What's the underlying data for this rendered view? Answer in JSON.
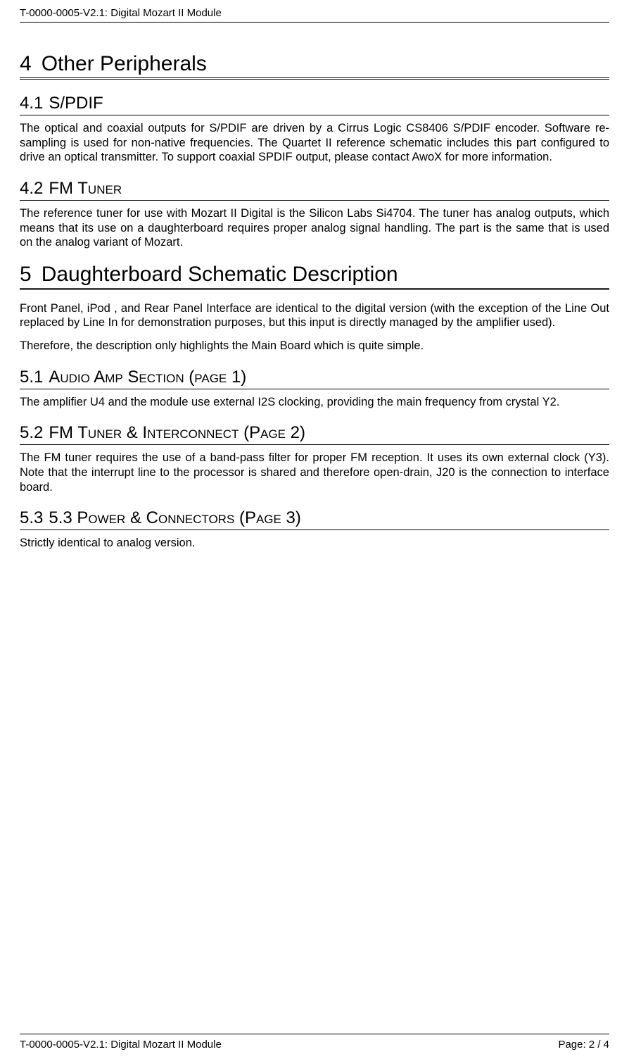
{
  "header": {
    "doc_id": "T-0000-0005-V2.1: Digital Mozart II  Module"
  },
  "footer": {
    "doc_id": "T-0000-0005-V2.1: Digital Mozart II  Module",
    "page": "Page: 2 / 4"
  },
  "sections": {
    "s4": {
      "num": "4",
      "title": "Other Peripherals"
    },
    "s4_1": {
      "num": "4.1",
      "title": "S/PDIF",
      "body": "The optical and coaxial outputs for S/PDIF are driven by a Cirrus Logic CS8406 S/PDIF encoder. Software re-sampling is used for non-native frequencies. The Quartet II reference schematic includes this part configured to drive an optical transmitter. To support coaxial SPDIF output, please contact AwoX for more information."
    },
    "s4_2": {
      "num": "4.2",
      "title": "FM Tuner",
      "body": "The reference tuner for use with Mozart II Digital is the Silicon Labs Si4704. The tuner has analog outputs, which means that its use on a daughterboard requires proper analog signal handling. The part is the same that is used on the analog variant of Mozart."
    },
    "s5": {
      "num": "5",
      "title": "Daughterboard Schematic Description",
      "body1": "Front Panel, iPod , and Rear Panel Interface are identical to the digital version (with the exception of the Line Out  replaced by Line In for demonstration purposes, but this input is directly managed by the amplifier used).",
      "body2": "Therefore, the description only highlights the Main Board which is quite simple."
    },
    "s5_1": {
      "num": "5.1",
      "title": "Audio Amp Section (page 1)",
      "body": "The amplifier U4 and the module use external I2S clocking, providing the main frequency from crystal Y2."
    },
    "s5_2": {
      "num": "5.2",
      "title": "FM Tuner & Interconnect (Page 2)",
      "body": "The FM tuner requires the use of a band-pass filter for proper FM reception. It uses its own external clock (Y3). Note that the interrupt line to the processor is shared and therefore open-drain, J20 is the connection to interface board."
    },
    "s5_3": {
      "num": "5.3",
      "title": "5.3 Power & Connectors (Page 3)",
      "body": "Strictly identical to analog version."
    }
  },
  "styles": {
    "text_color": "#000000",
    "background_color": "#ffffff",
    "body_fontsize": 16.5,
    "h1_fontsize": 30,
    "h2_fontsize": 24,
    "header_fontsize": 15,
    "rule_color": "#000000"
  }
}
